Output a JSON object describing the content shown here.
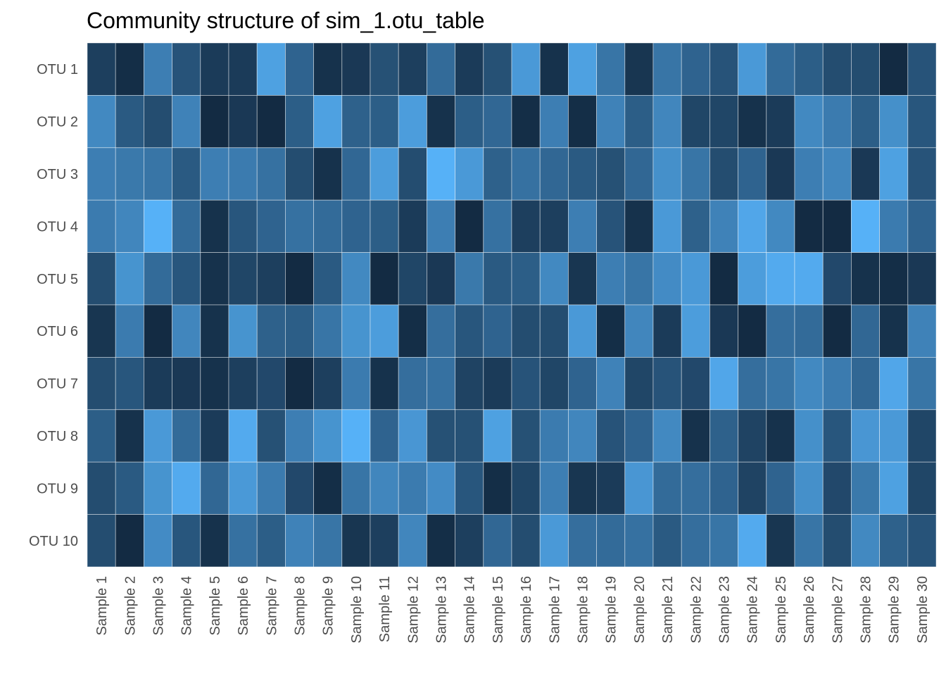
{
  "chart_data": {
    "type": "heatmap",
    "title": "Community structure of sim_1.otu_table",
    "xlabel": "",
    "ylabel": "",
    "rows": [
      "OTU 1",
      "OTU 2",
      "OTU 3",
      "OTU 4",
      "OTU 5",
      "OTU 6",
      "OTU 7",
      "OTU 8",
      "OTU 9",
      "OTU 10"
    ],
    "columns": [
      "Sample 1",
      "Sample 2",
      "Sample 3",
      "Sample 4",
      "Sample 5",
      "Sample 6",
      "Sample 7",
      "Sample 8",
      "Sample 9",
      "Sample 10",
      "Sample 11",
      "Sample 12",
      "Sample 13",
      "Sample 14",
      "Sample 15",
      "Sample 16",
      "Sample 17",
      "Sample 18",
      "Sample 19",
      "Sample 20",
      "Sample 21",
      "Sample 22",
      "Sample 23",
      "Sample 24",
      "Sample 25",
      "Sample 26",
      "Sample 27",
      "Sample 28",
      "Sample 29",
      "Sample 30"
    ],
    "value_scale": "relative intensity 0 (dark) to 1 (light)",
    "colors": {
      "low": "#132b43",
      "high": "#56b1f7"
    },
    "values": [
      [
        0.15,
        0.02,
        0.62,
        0.3,
        0.12,
        0.12,
        0.88,
        0.42,
        0.05,
        0.1,
        0.28,
        0.15,
        0.48,
        0.12,
        0.28,
        0.82,
        0.05,
        0.88,
        0.55,
        0.08,
        0.55,
        0.42,
        0.3,
        0.82,
        0.48,
        0.38,
        0.25,
        0.25,
        0.0,
        0.3
      ],
      [
        0.7,
        0.35,
        0.25,
        0.65,
        0.0,
        0.1,
        0.0,
        0.38,
        0.88,
        0.4,
        0.38,
        0.85,
        0.05,
        0.38,
        0.45,
        0.02,
        0.62,
        0.02,
        0.65,
        0.38,
        0.68,
        0.2,
        0.2,
        0.05,
        0.12,
        0.7,
        0.6,
        0.38,
        0.75,
        0.32
      ],
      [
        0.62,
        0.58,
        0.55,
        0.35,
        0.62,
        0.6,
        0.52,
        0.25,
        0.05,
        0.45,
        0.85,
        0.25,
        1.0,
        0.82,
        0.4,
        0.52,
        0.45,
        0.35,
        0.28,
        0.45,
        0.75,
        0.55,
        0.25,
        0.42,
        0.1,
        0.62,
        0.68,
        0.1,
        0.88,
        0.3
      ],
      [
        0.6,
        0.68,
        1.0,
        0.48,
        0.05,
        0.32,
        0.42,
        0.52,
        0.48,
        0.42,
        0.38,
        0.12,
        0.62,
        0.0,
        0.52,
        0.15,
        0.15,
        0.62,
        0.3,
        0.05,
        0.82,
        0.4,
        0.65,
        0.92,
        0.7,
        0.0,
        0.0,
        1.0,
        0.6,
        0.42
      ],
      [
        0.25,
        0.78,
        0.48,
        0.32,
        0.05,
        0.2,
        0.15,
        0.0,
        0.35,
        0.7,
        0.0,
        0.2,
        0.1,
        0.58,
        0.35,
        0.38,
        0.7,
        0.08,
        0.62,
        0.55,
        0.72,
        0.82,
        0.0,
        0.85,
        0.95,
        0.95,
        0.22,
        0.05,
        0.02,
        0.1
      ],
      [
        0.08,
        0.6,
        0.0,
        0.68,
        0.05,
        0.78,
        0.4,
        0.38,
        0.55,
        0.78,
        0.85,
        0.02,
        0.5,
        0.32,
        0.42,
        0.25,
        0.25,
        0.82,
        0.02,
        0.68,
        0.12,
        0.85,
        0.1,
        0.0,
        0.5,
        0.48,
        0.0,
        0.45,
        0.05,
        0.65
      ],
      [
        0.25,
        0.32,
        0.12,
        0.1,
        0.05,
        0.15,
        0.22,
        0.0,
        0.15,
        0.6,
        0.05,
        0.5,
        0.52,
        0.18,
        0.12,
        0.3,
        0.2,
        0.42,
        0.65,
        0.2,
        0.3,
        0.22,
        0.92,
        0.5,
        0.55,
        0.7,
        0.6,
        0.45,
        0.92,
        0.55
      ],
      [
        0.38,
        0.05,
        0.82,
        0.48,
        0.12,
        0.95,
        0.28,
        0.62,
        0.78,
        1.0,
        0.42,
        0.8,
        0.28,
        0.28,
        0.88,
        0.28,
        0.6,
        0.68,
        0.3,
        0.42,
        0.7,
        0.05,
        0.4,
        0.18,
        0.05,
        0.75,
        0.32,
        0.8,
        0.82,
        0.2
      ],
      [
        0.25,
        0.35,
        0.78,
        0.95,
        0.45,
        0.82,
        0.6,
        0.22,
        0.02,
        0.55,
        0.68,
        0.6,
        0.72,
        0.32,
        0.02,
        0.2,
        0.62,
        0.08,
        0.12,
        0.8,
        0.48,
        0.5,
        0.42,
        0.18,
        0.42,
        0.75,
        0.22,
        0.58,
        0.88,
        0.2
      ],
      [
        0.25,
        0.0,
        0.72,
        0.32,
        0.05,
        0.52,
        0.38,
        0.65,
        0.55,
        0.08,
        0.15,
        0.68,
        0.02,
        0.15,
        0.45,
        0.25,
        0.82,
        0.5,
        0.48,
        0.52,
        0.35,
        0.5,
        0.55,
        0.95,
        0.08,
        0.55,
        0.25,
        0.7,
        0.4,
        0.3
      ]
    ]
  }
}
